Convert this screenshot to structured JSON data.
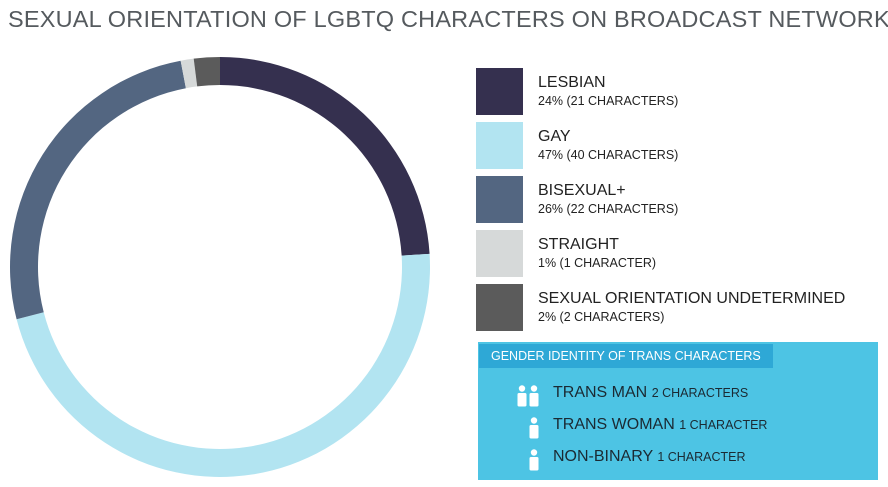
{
  "title": "SEXUAL ORIENTATION OF LGBTQ CHARACTERS ON BROADCAST NETWORKS",
  "chart_data": {
    "type": "pie",
    "variant": "donut",
    "title": "SEXUAL ORIENTATION OF LGBTQ CHARACTERS ON BROADCAST NETWORKS",
    "legend_position": "right",
    "slices": [
      {
        "label": "LESBIAN",
        "percent": 24,
        "characters": 21,
        "detail": "24% (21 CHARACTERS)",
        "color": "#35304f"
      },
      {
        "label": "GAY",
        "percent": 47,
        "characters": 40,
        "detail": "47% (40 CHARACTERS)",
        "color": "#b2e4f1"
      },
      {
        "label": "BISEXUAL+",
        "percent": 26,
        "characters": 22,
        "detail": "26% (22 CHARACTERS)",
        "color": "#536681"
      },
      {
        "label": "STRAIGHT",
        "percent": 1,
        "characters": 1,
        "detail": "1% (1 CHARACTER)",
        "color": "#d6d9d9"
      },
      {
        "label": "SEXUAL ORIENTATION UNDETERMINED",
        "percent": 2,
        "characters": 2,
        "detail": "2% (2 CHARACTERS)",
        "color": "#5b5b5b"
      }
    ]
  },
  "trans_panel": {
    "header": "GENDER IDENTITY OF TRANS CHARACTERS",
    "background": "#4dc4e4",
    "header_background": "#2ea8d6",
    "rows": [
      {
        "name": "TRANS MAN",
        "count": 2,
        "count_text": "2 CHARACTERS",
        "icon": "two-person-icon"
      },
      {
        "name": "TRANS WOMAN",
        "count": 1,
        "count_text": "1 CHARACTER",
        "icon": "person-icon"
      },
      {
        "name": "NON-BINARY",
        "count": 1,
        "count_text": "1 CHARACTER",
        "icon": "person-icon"
      }
    ]
  }
}
